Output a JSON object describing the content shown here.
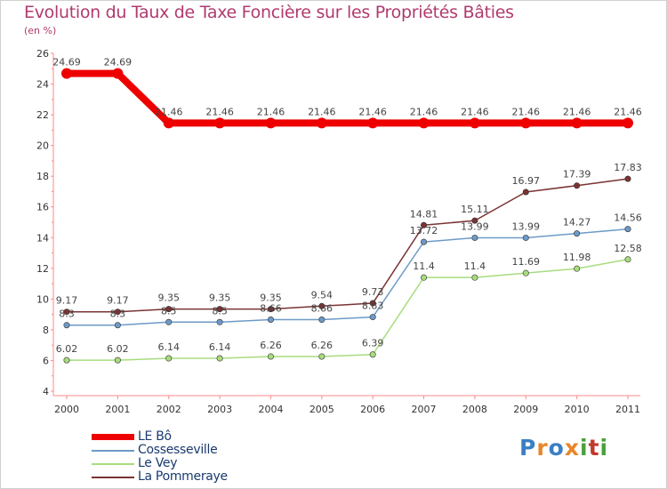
{
  "title": "Evolution du Taux de Taxe Foncière sur les Propriétés Bâties",
  "unit_label": "(en %)",
  "chart_data": {
    "type": "line",
    "x": [
      "2000",
      "2001",
      "2002",
      "2003",
      "2004",
      "2005",
      "2006",
      "2007",
      "2008",
      "2009",
      "2010",
      "2011"
    ],
    "ylim": [
      4,
      26
    ],
    "yticks": [
      4,
      6,
      8,
      10,
      12,
      14,
      16,
      18,
      20,
      22,
      24,
      26
    ],
    "grid": false,
    "series": [
      {
        "name": "LE Bô",
        "color": "#ee0000",
        "labels": [
          "24.69",
          "24.69",
          "21.46",
          "21.46",
          "21.46",
          "21.46",
          "21.46",
          "21.46",
          "21.46",
          "21.46",
          "21.46",
          "21.46"
        ],
        "values": [
          24.69,
          24.69,
          21.46,
          21.46,
          21.46,
          21.46,
          21.46,
          21.46,
          21.46,
          21.46,
          21.46,
          21.46
        ]
      },
      {
        "name": "Cossesseville",
        "color": "#6d9ac8",
        "labels": [
          "8.3",
          "8.3",
          "8.5",
          "8.5",
          "8.66",
          "8.66",
          "8.83",
          "13.72",
          "13.99",
          "13.99",
          "14.27",
          "14.56"
        ],
        "values": [
          8.3,
          8.3,
          8.5,
          8.5,
          8.66,
          8.66,
          8.83,
          13.72,
          13.99,
          13.99,
          14.27,
          14.56
        ]
      },
      {
        "name": "Le Vey",
        "color": "#a8dc7e",
        "labels": [
          "6.02",
          "6.02",
          "6.14",
          "6.14",
          "6.26",
          "6.26",
          "6.39",
          "11.4",
          "11.4",
          "11.69",
          "11.98",
          "12.58"
        ],
        "values": [
          6.02,
          6.02,
          6.14,
          6.14,
          6.26,
          6.26,
          6.39,
          11.4,
          11.4,
          11.69,
          11.98,
          12.58
        ]
      },
      {
        "name": "La Pommeraye",
        "color": "#7a3333",
        "labels": [
          "9.17",
          "9.17",
          "9.35",
          "9.35",
          "9.35",
          "9.54",
          "9.73",
          "14.81",
          "15.11",
          "16.97",
          "17.39",
          "17.83"
        ],
        "values": [
          9.17,
          9.17,
          9.35,
          9.35,
          9.35,
          9.54,
          9.73,
          14.81,
          15.11,
          16.97,
          17.39,
          17.83
        ]
      }
    ]
  },
  "legend": [
    "LE Bô",
    "Cossesseville",
    "Le Vey",
    "La Pommeraye"
  ],
  "logo": {
    "text": "Proxiti",
    "colors": [
      "#3a7fc4",
      "#e8862a",
      "#3a7fc4",
      "#e8862a",
      "#4aa03c",
      "#c0392b",
      "#4aa03c"
    ]
  }
}
